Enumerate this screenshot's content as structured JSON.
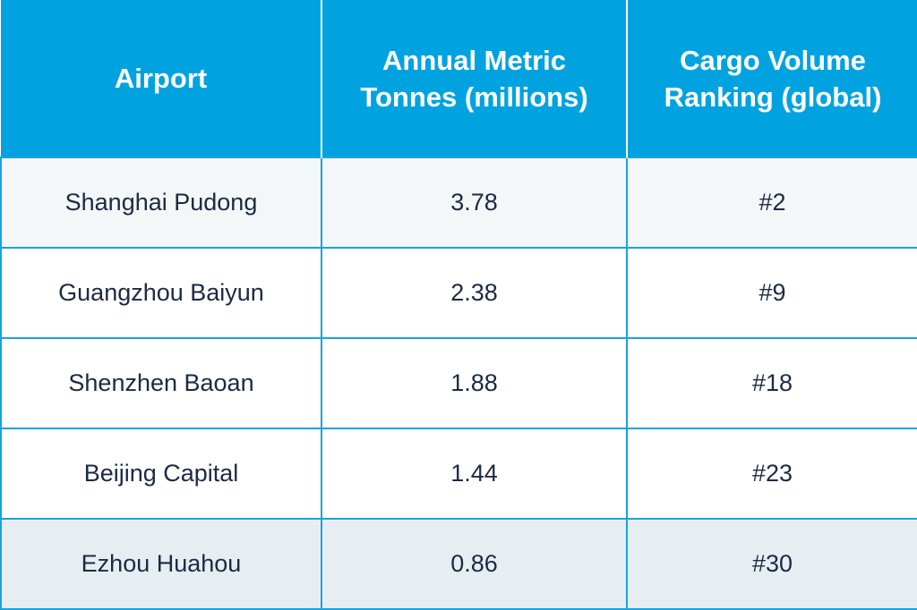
{
  "table": {
    "headers": [
      "Airport",
      "Annual Metric\nTonnes (millions)",
      "Cargo Volume\nRanking (global)"
    ],
    "rows": [
      [
        "Shanghai Pudong",
        "3.78",
        "#2"
      ],
      [
        "Guangzhou Baiyun",
        "2.38",
        "#9"
      ],
      [
        "Shenzhen Baoan",
        "1.88",
        "#18"
      ],
      [
        "Beijing Capital",
        "1.44",
        "#23"
      ],
      [
        "Ezhou Huahou",
        "0.86",
        "#30"
      ]
    ]
  },
  "colors": {
    "header_bg": "#00a3e0",
    "header_text": "#ffffff",
    "body_text": "#1c2a44",
    "border": "#1aa3df"
  }
}
